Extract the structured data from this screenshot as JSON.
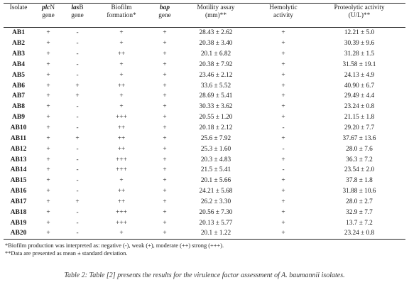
{
  "table": {
    "headers": [
      {
        "line1": "Isolate",
        "line2": ""
      },
      {
        "gene": "plc",
        "suffix": "N",
        "line2": "gene"
      },
      {
        "gene": "las",
        "suffix": "B",
        "line2": "gene"
      },
      {
        "line1": "Biofilm",
        "line2": "formation*"
      },
      {
        "gene": "bap",
        "suffix": "",
        "line2": "gene"
      },
      {
        "line1": "Motility assay",
        "line2": "(mm)**"
      },
      {
        "line1": "Hemolytic",
        "line2": "activity"
      },
      {
        "line1": "Proteolytic activity",
        "line2": "(U/L)**"
      }
    ],
    "rows": [
      [
        "AB1",
        "+",
        "-",
        "+",
        "+",
        "28.43 ± 2.62",
        "+",
        "12.21 ± 5.0"
      ],
      [
        "AB2",
        "+",
        "-",
        "+",
        "+",
        "20.38 ± 3.40",
        "+",
        "30.39 ± 9.6"
      ],
      [
        "AB3",
        "+",
        "-",
        "++",
        "+",
        "20.1 ± 6.82",
        "+",
        "31.28 ± 1.5"
      ],
      [
        "AB4",
        "+",
        "-",
        "+",
        "+",
        "20.38 ± 7.92",
        "+",
        "31.58 ± 19.1"
      ],
      [
        "AB5",
        "+",
        "-",
        "+",
        "+",
        "23.46 ± 2.12",
        "+",
        "24.13 ± 4.9"
      ],
      [
        "AB6",
        "+",
        "+",
        "++",
        "+",
        "33.6 ± 5.52",
        "+",
        "40.90 ± 6.7"
      ],
      [
        "AB7",
        "+",
        "+",
        "+",
        "+",
        "28.69 ± 5.41",
        "+",
        "29.49 ± 4.4"
      ],
      [
        "AB8",
        "+",
        "-",
        "+",
        "+",
        "30.33 ± 3.62",
        "+",
        "23.24 ± 0.8"
      ],
      [
        "AB9",
        "+",
        "-",
        "+++",
        "+",
        "20.55 ± 1.20",
        "+",
        "21.15 ± 1.8"
      ],
      [
        "AB10",
        "+",
        "-",
        "++",
        "+",
        "20.18 ± 2.12",
        "-",
        "29.20 ± 7.7"
      ],
      [
        "AB11",
        "+",
        "+",
        "++",
        "+",
        "25.6 ± 7.92",
        "+",
        "37.67 ± 13.6"
      ],
      [
        "AB12",
        "+",
        "-",
        "++",
        "+",
        "25.3 ± 1.60",
        "-",
        "28.0 ± 7.6"
      ],
      [
        "AB13",
        "+",
        "-",
        "+++",
        "+",
        "20.3 ± 4.83",
        "+",
        "36.3 ± 7.2"
      ],
      [
        "AB14",
        "+",
        "-",
        "+++",
        "+",
        "21.5 ± 5.41",
        "-",
        "23.54 ± 2.0"
      ],
      [
        "AB15",
        "+",
        "-",
        "+",
        "+",
        "20.1 ± 5.66",
        "+",
        "37.8 ± 1.8"
      ],
      [
        "AB16",
        "+",
        "-",
        "++",
        "+",
        "24.21 ± 5.68",
        "+",
        "31.88 ± 10.6"
      ],
      [
        "AB17",
        "+",
        "+",
        "++",
        "+",
        "26.2 ± 3.30",
        "+",
        "28.0 ± 2.7"
      ],
      [
        "AB18",
        "+",
        "-",
        "+++",
        "+",
        "20.56 ± 7.30",
        "+",
        "32.9 ± 7.7"
      ],
      [
        "AB19",
        "+",
        "-",
        "+++",
        "+",
        "20.13 ± 5.77",
        "+",
        "13.7 ± 7.2"
      ],
      [
        "AB20",
        "+",
        "-",
        "+",
        "+",
        "20.1 ± 1.22",
        "+",
        "23.24 ± 0.8"
      ]
    ]
  },
  "notes": [
    "*Biofilm production was interpreted as: negative (-), weak (+), moderate (++) strong (+++).",
    "**Data are presented as mean ± standard deviation."
  ],
  "caption": "Table 2: Table [2] presents the results for the virulence factor assessment of A. baumannii isolates."
}
